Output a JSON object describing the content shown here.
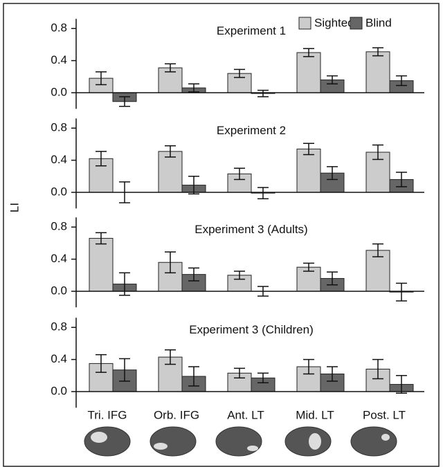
{
  "chart_data": {
    "type": "bar",
    "ylabel": "LI",
    "categories": [
      "Tri. IFG",
      "Orb. IFG",
      "Ant. LT",
      "Mid. LT",
      "Post. LT"
    ],
    "legend": [
      {
        "name": "Sighted",
        "color": "#cccccc"
      },
      {
        "name": "Blind",
        "color": "#666666"
      }
    ],
    "ylim": [
      -0.2,
      0.92
    ],
    "yticks": [
      {
        "value": 0,
        "label": "0.0"
      },
      0.4,
      0.8
    ],
    "panels": [
      {
        "title": "Experiment 1",
        "series": [
          {
            "values": [
              0.18,
              0.31,
              0.24,
              0.5,
              0.51
            ],
            "errors": [
              0.08,
              0.05,
              0.05,
              0.05,
              0.05
            ]
          },
          {
            "values": [
              -0.11,
              0.06,
              -0.01,
              0.16,
              0.15
            ],
            "errors": [
              0.06,
              0.05,
              0.04,
              0.05,
              0.06
            ]
          }
        ]
      },
      {
        "title": "Experiment 2",
        "series": [
          {
            "values": [
              0.42,
              0.51,
              0.23,
              0.54,
              0.5
            ],
            "errors": [
              0.09,
              0.07,
              0.07,
              0.07,
              0.09
            ]
          },
          {
            "values": [
              0.0,
              0.09,
              -0.01,
              0.24,
              0.16
            ],
            "errors": [
              0.13,
              0.11,
              0.07,
              0.08,
              0.09
            ]
          }
        ]
      },
      {
        "title": "Experiment 3 (Adults)",
        "series": [
          {
            "values": [
              0.66,
              0.36,
              0.2,
              0.3,
              0.51
            ],
            "errors": [
              0.07,
              0.13,
              0.05,
              0.05,
              0.08
            ]
          },
          {
            "values": [
              0.09,
              0.21,
              0.0,
              0.16,
              -0.01
            ],
            "errors": [
              0.14,
              0.08,
              0.06,
              0.08,
              0.11
            ]
          }
        ]
      },
      {
        "title": "Experiment 3 (Children)",
        "series": [
          {
            "values": [
              0.35,
              0.43,
              0.23,
              0.31,
              0.28
            ],
            "errors": [
              0.11,
              0.09,
              0.06,
              0.09,
              0.12
            ]
          },
          {
            "values": [
              0.27,
              0.19,
              0.17,
              0.22,
              0.09
            ],
            "errors": [
              0.14,
              0.12,
              0.06,
              0.09,
              0.11
            ]
          }
        ]
      }
    ]
  }
}
